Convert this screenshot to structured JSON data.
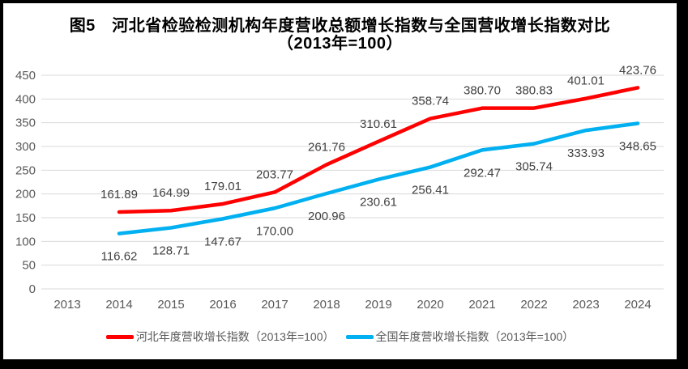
{
  "chart_data": {
    "type": "line",
    "title": "图5　河北省检验检测机构年度营收总额增长指数与全国营收增长指数对比",
    "subtitle": "（2013年=100）",
    "categories": [
      "2013",
      "2014",
      "2015",
      "2016",
      "2017",
      "2018",
      "2019",
      "2020",
      "2021",
      "2022",
      "2023",
      "2024"
    ],
    "series": [
      {
        "name": "河北年度营收增长指数（2013年=100）",
        "color": "#FF0000",
        "start_category": "2014",
        "label_position": "above",
        "values": [
          161.89,
          164.99,
          179.01,
          203.77,
          261.76,
          310.61,
          358.74,
          380.7,
          380.83,
          401.01,
          423.76
        ]
      },
      {
        "name": "全国年度营收增长指数（2013年=100）",
        "color": "#00B0F0",
        "start_category": "2014",
        "label_position": "below",
        "values": [
          116.62,
          128.71,
          147.67,
          170.0,
          200.96,
          230.61,
          256.41,
          292.47,
          305.74,
          333.93,
          348.65
        ]
      }
    ],
    "y_ticks": [
      0,
      50,
      100,
      150,
      200,
      250,
      300,
      350,
      400,
      450
    ],
    "ylim": [
      0,
      450
    ],
    "grid": true,
    "legend_position": "bottom",
    "data_labels_decimals": 2
  },
  "colors": {
    "frame": "#000000",
    "background": "#FFFFFF",
    "gridline": "#D9D9D9",
    "axis_text": "#595959",
    "data_label_text": "#404040",
    "title_text": "#000000"
  }
}
